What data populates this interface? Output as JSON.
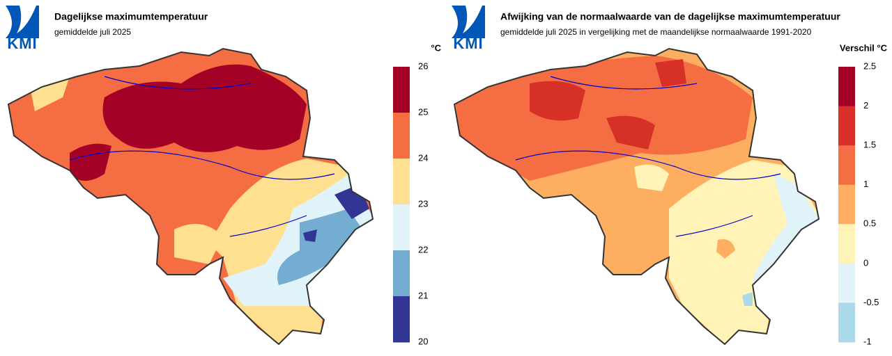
{
  "logo": "KMI",
  "panels": [
    {
      "title": "Dagelijkse maximumtemperatuur",
      "subtitle": "gemiddelde juli 2025",
      "legend": {
        "unit": "°C",
        "ticks": [
          26,
          25,
          24,
          23,
          22,
          21,
          20
        ],
        "colors": [
          "#a50026",
          "#f46d43",
          "#fee090",
          "#e0f3f8",
          "#74add1",
          "#313695"
        ]
      }
    },
    {
      "title": "Afwijking van de normaalwaarde van de dagelijkse maximumtemperatuur",
      "subtitle": "gemiddelde juli 2025 in vergelijking met de maandelijkse normaalwaarde 1991-2020",
      "legend": {
        "unit": "Verschil °C",
        "ticks": [
          2.5,
          2,
          1.5,
          1,
          0.5,
          0,
          -0.5,
          -1
        ],
        "colors": [
          "#a50026",
          "#d73027",
          "#f46d43",
          "#fdae61",
          "#fff3b8",
          "#e0f3f8",
          "#abd9e9"
        ]
      }
    }
  ]
}
